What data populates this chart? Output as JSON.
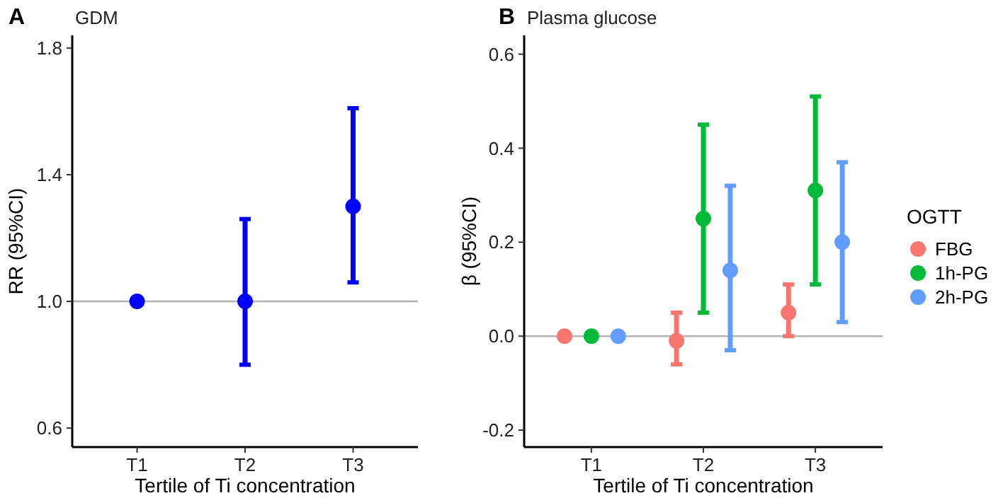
{
  "chart_data": [
    {
      "type": "scatter",
      "title": "GDM",
      "annotations": [
        "A"
      ],
      "xlabel": "Tertile of Ti concentration",
      "ylabel": "RR (95%CI)",
      "categories": [
        "T1",
        "T2",
        "T3"
      ],
      "marker": "circle",
      "ylim": [
        0.54,
        1.84
      ],
      "yticks": [
        0.6,
        {
          "value": 1,
          "label": "1.0"
        },
        1.4,
        1.8
      ],
      "ref_lines": [
        {
          "axis": "y",
          "value": 1,
          "color": "#b3b3b3"
        }
      ],
      "series": [
        {
          "color": "#0000ff",
          "values": [
            1,
            1,
            1.3
          ],
          "errors": [
            null,
            [
              0.8,
              1.26
            ],
            [
              1.06,
              1.61
            ]
          ]
        }
      ]
    },
    {
      "type": "scatter",
      "title": "Plasma glucose",
      "annotations": [
        "B"
      ],
      "xlabel": "Tertile of Ti concentration",
      "ylabel": "β (95%CI)",
      "categories": [
        "T1",
        "T2",
        "T3"
      ],
      "marker": "circle",
      "ylim": [
        -0.236,
        0.64
      ],
      "yticks": [
        -0.2,
        {
          "value": 0,
          "label": "0.0"
        },
        0.2,
        0.4,
        0.6
      ],
      "ref_lines": [
        {
          "axis": "y",
          "value": 0,
          "color": "#b3b3b3"
        }
      ],
      "legend": "right",
      "legend_title": "OGTT",
      "series": [
        {
          "name": "FBG",
          "color": "#f8766d",
          "values": [
            0,
            -0.01,
            0.05
          ],
          "errors": [
            null,
            [
              -0.06,
              0.05
            ],
            [
              0,
              0.11
            ]
          ]
        },
        {
          "name": "1h-PG",
          "color": "#00ba38",
          "values": [
            0,
            0.25,
            0.31
          ],
          "errors": [
            null,
            [
              0.05,
              0.45
            ],
            [
              0.11,
              0.51
            ]
          ]
        },
        {
          "name": "2h-PG",
          "color": "#619cff",
          "values": [
            0,
            0.14,
            0.2
          ],
          "errors": [
            null,
            [
              -0.03,
              0.32
            ],
            [
              0.03,
              0.37
            ]
          ]
        }
      ]
    }
  ]
}
